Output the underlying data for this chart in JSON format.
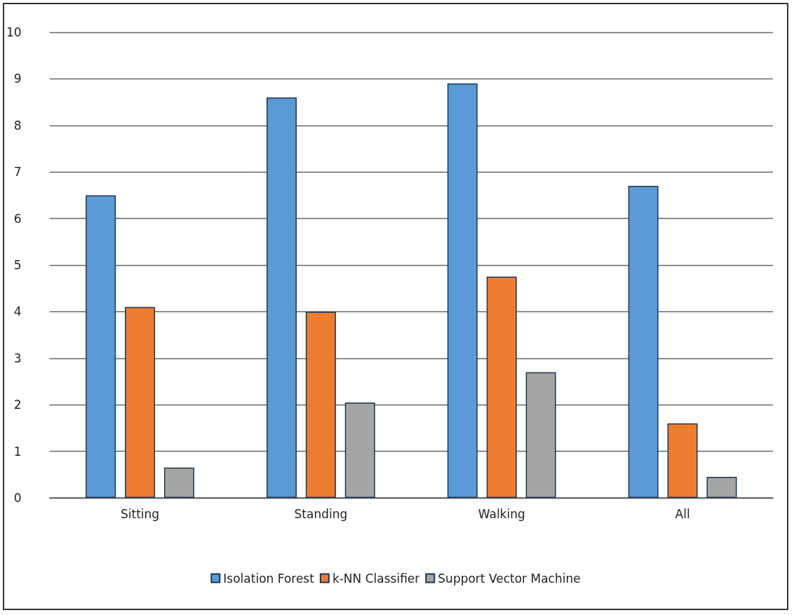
{
  "chart_data": {
    "type": "bar",
    "categories": [
      "Sitting",
      "Standing",
      "Walking",
      "All"
    ],
    "series": [
      {
        "name": "Isolation Forest",
        "color": "#5b9bd5",
        "values": [
          6.5,
          8.6,
          8.9,
          6.7
        ]
      },
      {
        "name": "k-NN Classifier",
        "color": "#ed7d31",
        "values": [
          4.1,
          4.0,
          4.75,
          1.6
        ]
      },
      {
        "name": "Support Vector Machine",
        "color": "#a5a5a5",
        "values": [
          0.65,
          2.05,
          2.7,
          0.45
        ]
      }
    ],
    "ylim": [
      0,
      10
    ],
    "yticks": [
      0,
      1,
      2,
      3,
      4,
      5,
      6,
      7,
      8,
      9,
      10
    ],
    "grid": "y",
    "legend": "bottom"
  }
}
